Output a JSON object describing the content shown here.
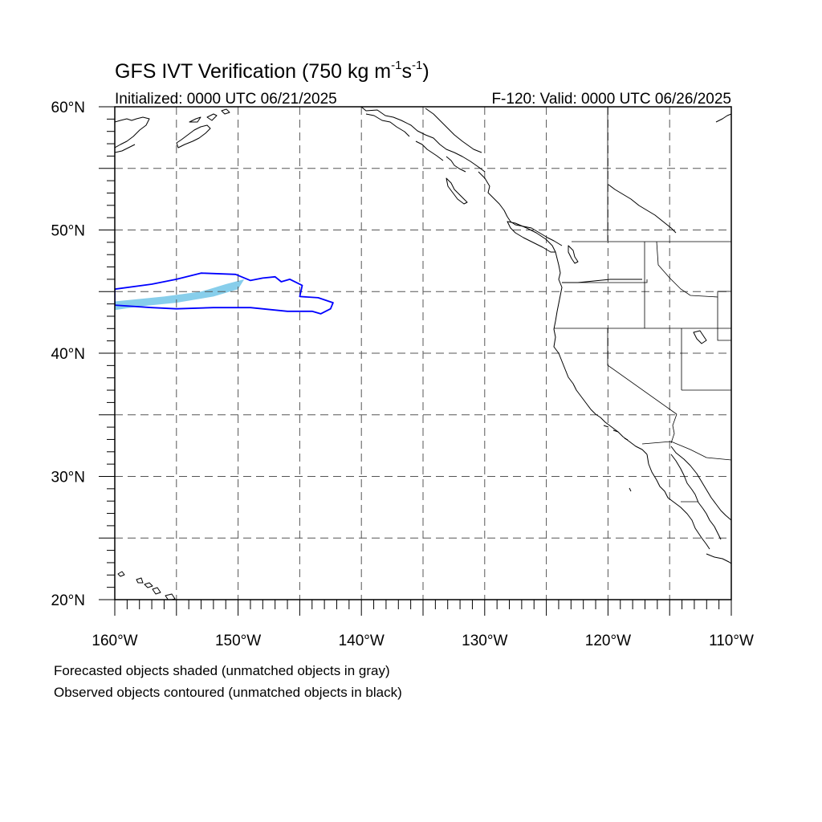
{
  "figure": {
    "title_main": "GFS IVT Verification (750 kg m",
    "title_sup1": "-1",
    "title_mid": "s",
    "title_sup2": "-1",
    "title_end": ")",
    "left_subtitle": "Initialized: 0000 UTC 06/21/2025",
    "right_subtitle": "F-120: Valid: 0000 UTC 06/26/2025"
  },
  "axes": {
    "lon_range": [
      -160,
      -110
    ],
    "lat_range": [
      20,
      60
    ],
    "lon_ticks": [
      {
        "value": -160,
        "label": "160°W"
      },
      {
        "value": -150,
        "label": "150°W"
      },
      {
        "value": -140,
        "label": "140°W"
      },
      {
        "value": -130,
        "label": "130°W"
      },
      {
        "value": -120,
        "label": "120°W"
      },
      {
        "value": -110,
        "label": "110°W"
      }
    ],
    "lat_ticks": [
      {
        "value": 60,
        "label": "60°N"
      },
      {
        "value": 50,
        "label": "50°N"
      },
      {
        "value": 40,
        "label": "40°N"
      },
      {
        "value": 30,
        "label": "30°N"
      },
      {
        "value": 20,
        "label": "20°N"
      }
    ],
    "grid_spacing_deg": 5,
    "grid": "dashed"
  },
  "legend_notes": {
    "line1": "Forecasted objects shaded (unmatched objects in gray)",
    "line2": "Observed objects contoured (unmatched objects in black)"
  },
  "colors": {
    "forecast_fill": "#87ceeb",
    "observed_contour": "#0000ff",
    "coastline": "#000000"
  },
  "objects": {
    "forecast_shaded": {
      "matched": true,
      "polygon_lonlat": [
        [
          -160,
          44.2
        ],
        [
          -156,
          44.6
        ],
        [
          -153,
          45.0
        ],
        [
          -151,
          45.6
        ],
        [
          -149.5,
          46.0
        ],
        [
          -150,
          45.2
        ],
        [
          -152,
          44.6
        ],
        [
          -155,
          44.1
        ],
        [
          -158,
          43.8
        ],
        [
          -160,
          43.5
        ]
      ]
    },
    "observed_contour": {
      "matched": true,
      "polygon_lonlat": [
        [
          -160,
          45.2
        ],
        [
          -157,
          45.6
        ],
        [
          -155,
          46.0
        ],
        [
          -153,
          46.5
        ],
        [
          -150.2,
          46.4
        ],
        [
          -149,
          45.9
        ],
        [
          -148,
          46.1
        ],
        [
          -147,
          46.2
        ],
        [
          -146.5,
          45.8
        ],
        [
          -145.8,
          46.0
        ],
        [
          -144.8,
          45.5
        ],
        [
          -145,
          44.6
        ],
        [
          -143.5,
          44.5
        ],
        [
          -142.3,
          44.1
        ],
        [
          -142.5,
          43.6
        ],
        [
          -143.3,
          43.2
        ],
        [
          -144,
          43.4
        ],
        [
          -146,
          43.4
        ],
        [
          -149,
          43.7
        ],
        [
          -152,
          43.7
        ],
        [
          -155,
          43.6
        ],
        [
          -157,
          43.7
        ],
        [
          -160,
          43.9
        ]
      ]
    }
  }
}
